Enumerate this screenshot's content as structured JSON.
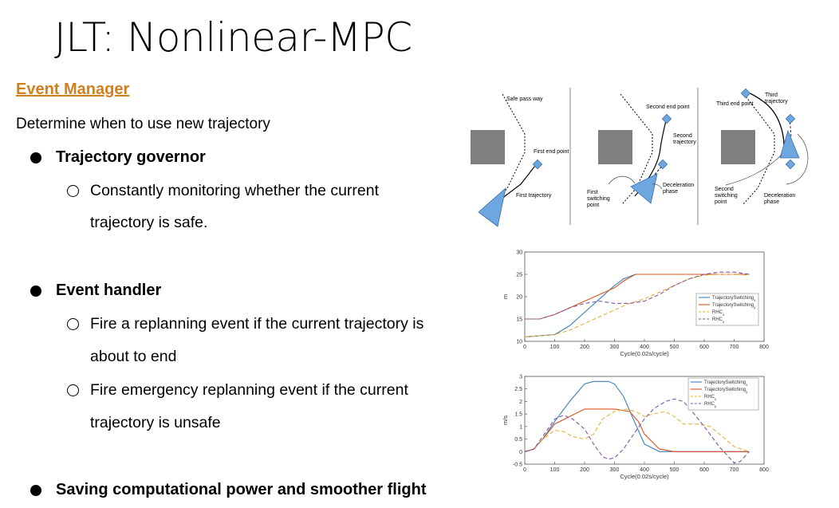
{
  "slide": {
    "title": "JLT: Nonlinear-MPC",
    "section": "Event Manager",
    "description": "Determine when to use new trajectory",
    "bullets": [
      {
        "label": "Trajectory governor",
        "sub": [
          {
            "line1": "Constantly monitoring whether the current",
            "line2": "trajectory is safe."
          }
        ]
      },
      {
        "label": "Event handler",
        "sub": [
          {
            "line1": "Fire a replanning event if the current trajectory is",
            "line2": "about to end"
          },
          {
            "line1": "Fire emergency replanning event if the current",
            "line2": "trajectory is unsafe"
          }
        ]
      },
      {
        "label": "Saving computational power and smoother flight"
      }
    ]
  },
  "diagram": {
    "panel1": {
      "safe": "Safe pass way",
      "end": "First end point",
      "traj": "First trajectory"
    },
    "panel2": {
      "end": "Second end point",
      "traj1": "Second",
      "traj2": "trajectory",
      "sw1": "First",
      "sw2": "switching",
      "sw3": "point",
      "dec1": "Deceleration",
      "dec2": "phase"
    },
    "panel3": {
      "t1": "Third",
      "t2": "trajectory",
      "end": "Third end point",
      "sw1": "Second",
      "sw2": "switching",
      "sw3": "point",
      "dec1": "Deceleration",
      "dec2": "phase"
    },
    "colors": {
      "obstacle": "#7f7f7f",
      "drone": "#6ea6e0"
    }
  },
  "chart_data": [
    {
      "type": "line",
      "ylabel": "m",
      "xlabel": "Cycle(0.02s/cycle)",
      "xlim": [
        0,
        800
      ],
      "ylim": [
        10,
        30
      ],
      "xticks": [
        "0",
        "100",
        "200",
        "300",
        "400",
        "500",
        "600",
        "700",
        "800"
      ],
      "yticks": [
        "10",
        "15",
        "20",
        "25",
        "30"
      ],
      "legend_position": "right",
      "series": [
        {
          "name": "TrajectorySwitching",
          "sub": "x",
          "color": "#3a7fc1",
          "dash": "",
          "x": [
            0,
            100,
            150,
            200,
            250,
            300,
            330,
            370,
            400,
            450,
            500,
            550,
            600,
            650,
            700,
            750
          ],
          "y": [
            11,
            11.5,
            13.5,
            16.5,
            19.5,
            22.5,
            24,
            25,
            25,
            25,
            25,
            25,
            25,
            25,
            25,
            25
          ]
        },
        {
          "name": "TrajectorySwitching",
          "sub": "y",
          "color": "#d9541e",
          "dash": "",
          "x": [
            0,
            50,
            100,
            150,
            200,
            250,
            300,
            330,
            370,
            400,
            450,
            500,
            550,
            600,
            650,
            700,
            750
          ],
          "y": [
            15,
            15,
            16,
            17.5,
            19,
            20.5,
            22,
            23.5,
            25,
            25,
            25,
            25,
            25,
            25,
            25,
            25,
            25
          ]
        },
        {
          "name": "RHC",
          "sub": "x",
          "color": "#e8b331",
          "dash": "5,3",
          "x": [
            0,
            100,
            150,
            200,
            250,
            300,
            350,
            400,
            450,
            500,
            550,
            600,
            650,
            700,
            750
          ],
          "y": [
            11,
            11.5,
            12.5,
            14,
            15.5,
            17,
            18.5,
            19.5,
            21,
            22.5,
            24,
            24.8,
            25,
            25,
            24.8
          ]
        },
        {
          "name": "RHC",
          "sub": "y",
          "color": "#7e57a8",
          "dash": "5,3",
          "x": [
            0,
            50,
            100,
            150,
            200,
            250,
            300,
            350,
            400,
            450,
            500,
            550,
            600,
            650,
            700,
            750
          ],
          "y": [
            15,
            15,
            16,
            17.5,
            18.5,
            19,
            18.5,
            18.5,
            19,
            20.5,
            22.5,
            24,
            25,
            25.5,
            25.5,
            25
          ]
        }
      ]
    },
    {
      "type": "line",
      "ylabel": "m/s",
      "xlabel": "Cycle(0.02s/cycle)",
      "xlim": [
        0,
        800
      ],
      "ylim": [
        -0.5,
        3
      ],
      "xticks": [
        "0",
        "100",
        "200",
        "300",
        "400",
        "500",
        "600",
        "700",
        "800"
      ],
      "yticks": [
        "-0.5",
        "0",
        "0.5",
        "1",
        "1.5",
        "2",
        "2.5",
        "3"
      ],
      "legend_position": "top-right",
      "series": [
        {
          "name": "TrajectorySwitching",
          "sub": "x",
          "color": "#3a7fc1",
          "dash": "",
          "x": [
            0,
            30,
            60,
            100,
            150,
            200,
            230,
            280,
            300,
            330,
            370,
            400,
            450,
            500,
            600,
            700,
            750
          ],
          "y": [
            0,
            0.1,
            0.5,
            1.2,
            2.0,
            2.7,
            2.8,
            2.8,
            2.7,
            2.2,
            1.1,
            0.3,
            0,
            0,
            0,
            0,
            0
          ]
        },
        {
          "name": "TrajectorySwitching",
          "sub": "y",
          "color": "#d9541e",
          "dash": "",
          "x": [
            0,
            30,
            60,
            100,
            150,
            200,
            250,
            300,
            350,
            380,
            400,
            450,
            500,
            550,
            600,
            700,
            750
          ],
          "y": [
            0,
            0.1,
            0.5,
            1.1,
            1.4,
            1.7,
            1.7,
            1.7,
            1.6,
            1.2,
            0.7,
            0.1,
            0,
            0,
            0,
            0,
            0
          ]
        },
        {
          "name": "RHC",
          "sub": "x",
          "color": "#e8b331",
          "dash": "5,3",
          "x": [
            0,
            30,
            60,
            100,
            130,
            160,
            200,
            230,
            260,
            300,
            340,
            370,
            400,
            430,
            470,
            500,
            530,
            580,
            620,
            660,
            700,
            750
          ],
          "y": [
            0,
            0.1,
            0.5,
            0.85,
            0.8,
            0.6,
            0.5,
            0.7,
            1.3,
            1.6,
            1.7,
            1.6,
            1.4,
            1.5,
            1.6,
            1.4,
            1.1,
            1.1,
            1.0,
            0.6,
            0.2,
            0
          ]
        },
        {
          "name": "RHC",
          "sub": "y",
          "color": "#7e57a8",
          "dash": "5,3",
          "x": [
            0,
            30,
            60,
            100,
            130,
            160,
            200,
            230,
            260,
            280,
            300,
            330,
            370,
            400,
            430,
            470,
            500,
            530,
            560,
            600,
            650,
            700,
            720,
            750
          ],
          "y": [
            0,
            0.1,
            0.6,
            1.3,
            1.45,
            1.3,
            0.9,
            0.3,
            -0.2,
            -0.3,
            -0.25,
            0.1,
            0.8,
            1.3,
            1.7,
            2.0,
            2.1,
            2.0,
            1.6,
            1.0,
            0.2,
            -0.45,
            -0.4,
            0
          ]
        }
      ]
    }
  ]
}
